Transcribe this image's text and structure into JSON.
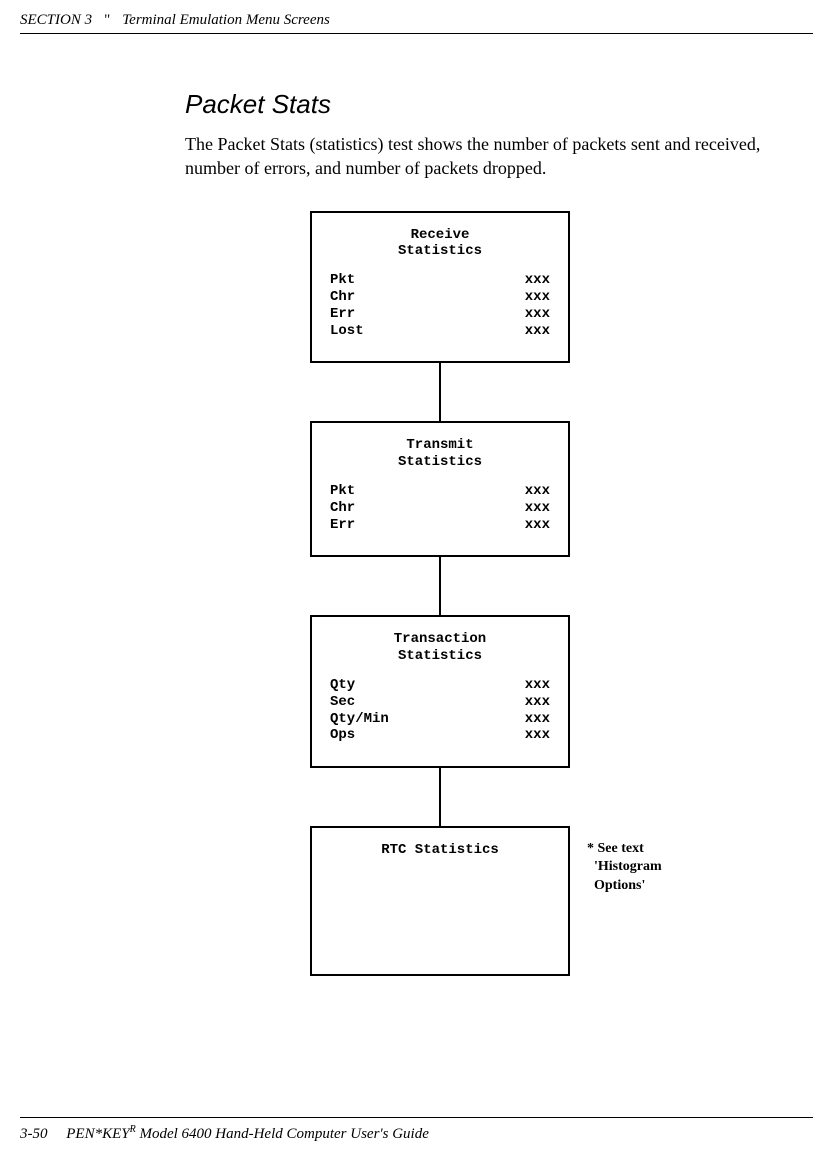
{
  "header": {
    "section": "SECTION 3",
    "bullet": "\"",
    "title": "Terminal Emulation Menu Screens"
  },
  "main": {
    "heading": "Packet Stats",
    "body": "The Packet Stats (statistics) test shows the number of packets sent and received, number of errors, and number of packets dropped."
  },
  "boxes": {
    "receive": {
      "title": "Receive\nStatistics",
      "rows": [
        {
          "label": "Pkt",
          "value": "xxx"
        },
        {
          "label": "Chr",
          "value": "xxx"
        },
        {
          "label": "Err",
          "value": "xxx"
        },
        {
          "label": "Lost",
          "value": "xxx"
        }
      ]
    },
    "transmit": {
      "title": "Transmit\nStatistics",
      "rows": [
        {
          "label": "Pkt",
          "value": "xxx"
        },
        {
          "label": "Chr",
          "value": "xxx"
        },
        {
          "label": "Err",
          "value": "xxx"
        }
      ]
    },
    "transaction": {
      "title": "Transaction\nStatistics",
      "rows": [
        {
          "label": "Qty",
          "value": "xxx"
        },
        {
          "label": "Sec",
          "value": "xxx"
        },
        {
          "label": "Qty/Min",
          "value": "xxx"
        },
        {
          "label": "Ops",
          "value": "xxx"
        }
      ]
    },
    "rtc": {
      "title": "RTC Statistics",
      "annotation": "* See text\n  'Histogram\n  Options'"
    }
  },
  "footer": {
    "page": "3-50",
    "product_prefix": "PEN*KEY",
    "product_sup": "R",
    "product_suffix": " Model 6400 Hand-Held Computer User's Guide"
  }
}
